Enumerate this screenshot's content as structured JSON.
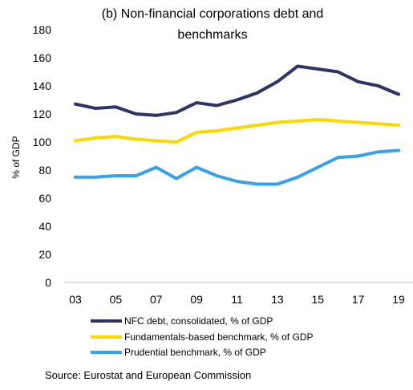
{
  "chart_data": {
    "type": "line",
    "title_line1": "(b) Non-financial corporations debt and",
    "title_line2": "benchmarks",
    "ylabel": "% of GDP",
    "xlabel": "",
    "ylim": [
      0,
      180
    ],
    "yticks": [
      0,
      20,
      40,
      60,
      80,
      100,
      120,
      140,
      160,
      180
    ],
    "x": [
      2003,
      2004,
      2005,
      2006,
      2007,
      2008,
      2009,
      2010,
      2011,
      2012,
      2013,
      2014,
      2015,
      2016,
      2017,
      2018,
      2019
    ],
    "x_tick_labels": [
      "03",
      "05",
      "07",
      "09",
      "11",
      "13",
      "15",
      "17",
      "19"
    ],
    "x_tick_years": [
      2003,
      2005,
      2007,
      2009,
      2011,
      2013,
      2015,
      2017,
      2019
    ],
    "grid": false,
    "legend_position": "bottom",
    "series": [
      {
        "name": "NFC debt, consolidated,  % of GDP",
        "color": "#2E3468",
        "values": [
          127,
          124,
          125,
          120,
          119,
          121,
          128,
          126,
          130,
          135,
          143,
          154,
          152,
          150,
          143,
          140,
          134
        ]
      },
      {
        "name": "Fundamentals-based benchmark, % of GDP",
        "color": "#FFD700",
        "values": [
          101,
          103,
          104,
          102,
          101,
          100,
          107,
          108,
          110,
          112,
          114,
          115,
          116,
          115,
          114,
          113,
          112
        ]
      },
      {
        "name": "Prudential benchmark, % of GDP",
        "color": "#3AA0E8",
        "values": [
          75,
          75,
          76,
          76,
          82,
          74,
          82,
          76,
          72,
          70,
          70,
          75,
          82,
          89,
          90,
          93,
          94
        ]
      }
    ]
  },
  "source": "Source: Eurostat and European Commission"
}
